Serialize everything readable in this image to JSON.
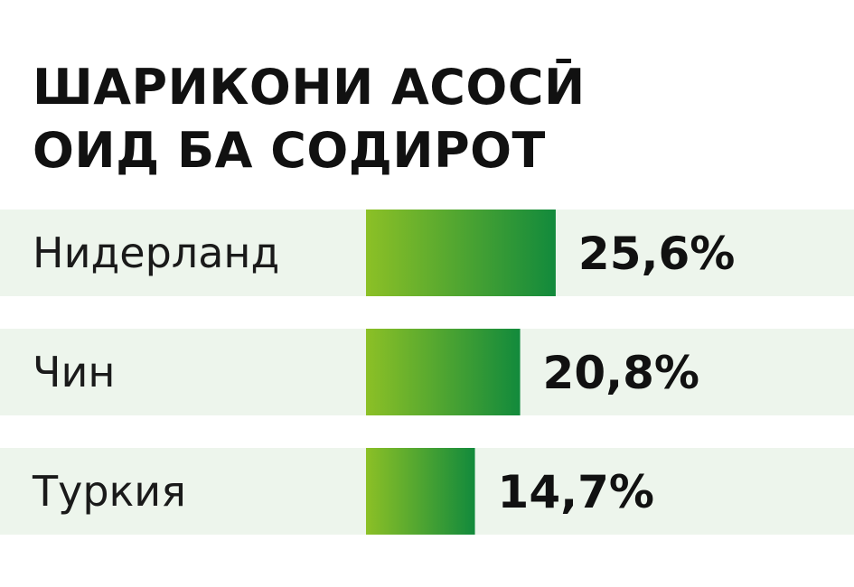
{
  "chart_data": {
    "type": "bar",
    "orientation": "horizontal",
    "title": [
      "ШАРИКОНИ АСОСӢ",
      "ОИД БА СОДИРОТ"
    ],
    "categories": [
      "Нидерланд",
      "Чин",
      "Туркия"
    ],
    "values": [
      25.6,
      20.8,
      14.7
    ],
    "value_labels": [
      "25,6%",
      "20,8%",
      "14,7%"
    ],
    "unit": "%",
    "xlim": [
      0,
      32
    ],
    "grid": false,
    "legend": "none",
    "colors": {
      "row_background": "#edf5ec",
      "bar_gradient_start": "#8cc026",
      "bar_gradient_end": "#128a3c",
      "text": "#111111"
    }
  }
}
